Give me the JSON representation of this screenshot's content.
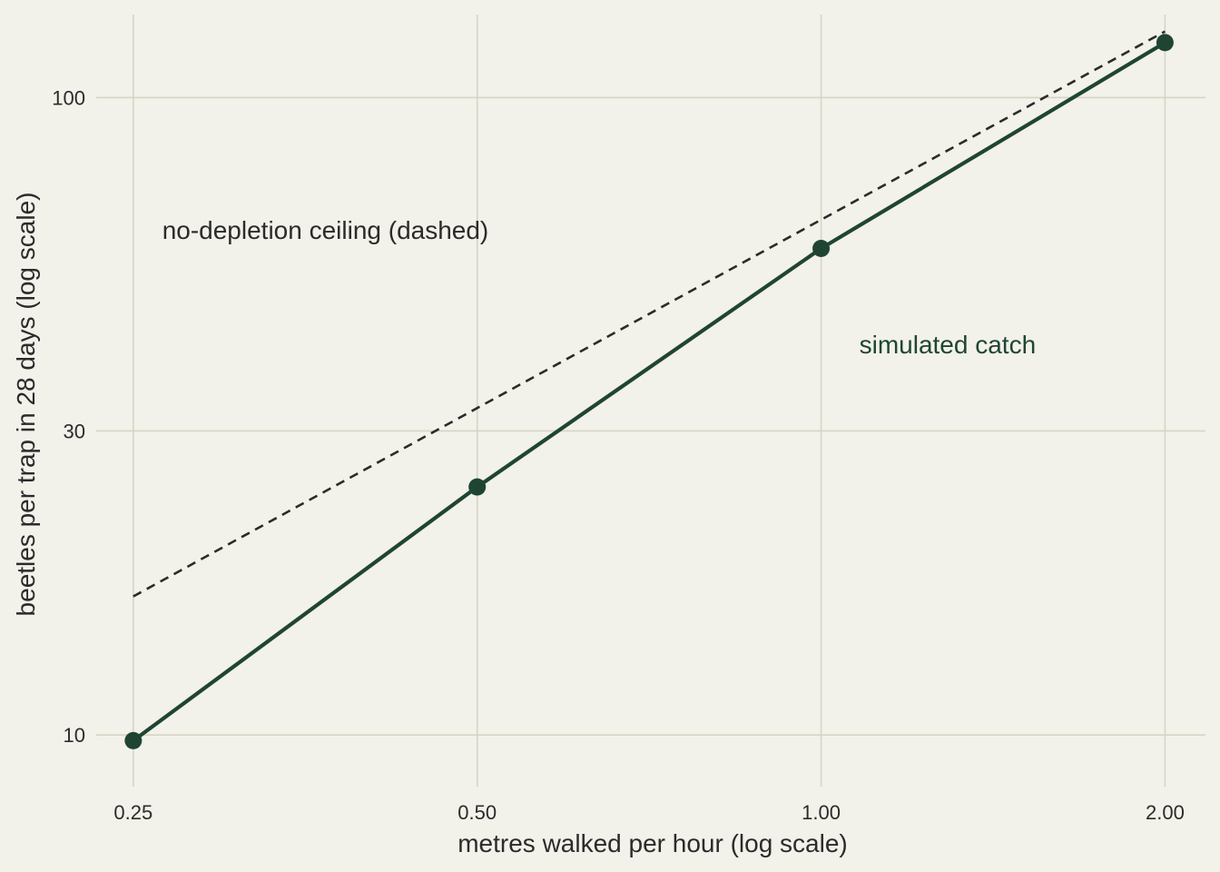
{
  "chart_data": {
    "type": "line",
    "xlabel": "metres walked per hour (log scale)",
    "ylabel": "beetles per trap in 28 days (log scale)",
    "x_scale": "log",
    "y_scale": "log",
    "xlim": [
      0.232,
      2.17
    ],
    "ylim": [
      8.3,
      135
    ],
    "grid": true,
    "x_ticks": [
      0.25,
      0.5,
      1.0,
      2.0
    ],
    "x_tick_labels": [
      "0.25",
      "0.50",
      "1.00",
      "2.00"
    ],
    "y_ticks": [
      10,
      30,
      100
    ],
    "y_tick_labels": [
      "10",
      "30",
      "100"
    ],
    "series": [
      {
        "style": "solid",
        "color": "#1f4532",
        "markers": true,
        "x": [
          0.25,
          0.5,
          1.0,
          2.0
        ],
        "y": [
          9.8,
          24.5,
          58.0,
          122.0
        ]
      },
      {
        "style": "dashed",
        "color": "#2b2b2b",
        "markers": false,
        "x": [
          0.25,
          2.0
        ],
        "y": [
          16.5,
          127.0
        ]
      }
    ],
    "annotations": [
      {
        "text": "no-depletion ceiling (dashed)",
        "x": 0.265,
        "y": 62.0,
        "color": "#2b2b2b"
      },
      {
        "text": "simulated catch",
        "x": 1.08,
        "y": 41.0,
        "color": "#1f4532"
      }
    ]
  }
}
